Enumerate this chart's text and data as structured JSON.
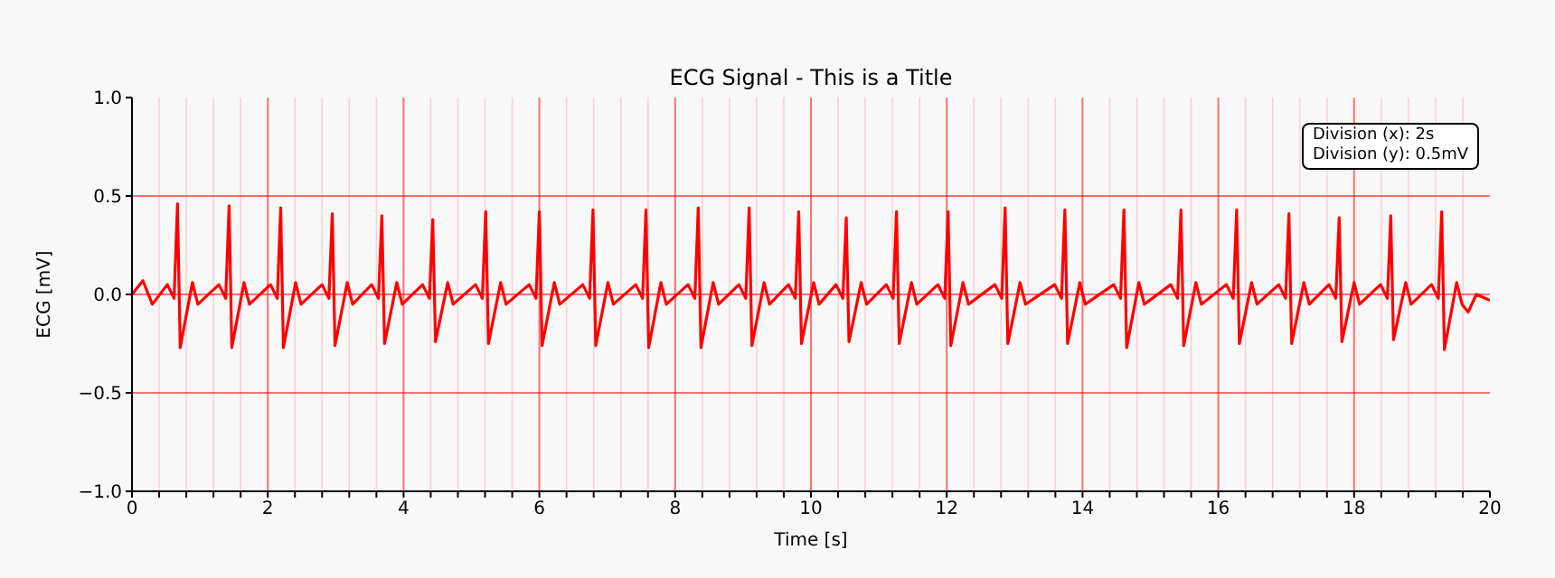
{
  "chart_data": {
    "type": "line",
    "title": "ECG Signal - This is a Title",
    "xlabel": "Time [s]",
    "ylabel": "ECG [mV]",
    "annotations": [
      "Division (x): 2s",
      "Division (y): 0.5mV"
    ],
    "xlim": [
      0,
      20
    ],
    "ylim": [
      -1,
      1
    ],
    "xticks": [
      0,
      {
        "value": 0.4,
        "label": null
      },
      {
        "value": 0.8,
        "label": null
      },
      {
        "value": 1.2,
        "label": null
      },
      {
        "value": 1.6,
        "label": null
      },
      2,
      {
        "value": 2.4,
        "label": null
      },
      {
        "value": 2.8,
        "label": null
      },
      {
        "value": 3.2,
        "label": null
      },
      {
        "value": 3.6,
        "label": null
      },
      4,
      {
        "value": 4.4,
        "label": null
      },
      {
        "value": 4.8,
        "label": null
      },
      {
        "value": 5.2,
        "label": null
      },
      {
        "value": 5.6,
        "label": null
      },
      6,
      {
        "value": 6.4,
        "label": null
      },
      {
        "value": 6.8,
        "label": null
      },
      {
        "value": 7.2,
        "label": null
      },
      {
        "value": 7.6,
        "label": null
      },
      8,
      {
        "value": 8.4,
        "label": null
      },
      {
        "value": 8.8,
        "label": null
      },
      {
        "value": 9.2,
        "label": null
      },
      {
        "value": 9.6,
        "label": null
      },
      10,
      {
        "value": 10.4,
        "label": null
      },
      {
        "value": 10.8,
        "label": null
      },
      {
        "value": 11.2,
        "label": null
      },
      {
        "value": 11.6,
        "label": null
      },
      12,
      {
        "value": 12.4,
        "label": null
      },
      {
        "value": 12.8,
        "label": null
      },
      {
        "value": 13.2,
        "label": null
      },
      {
        "value": 13.6,
        "label": null
      },
      14,
      {
        "value": 14.4,
        "label": null
      },
      {
        "value": 14.8,
        "label": null
      },
      {
        "value": 15.2,
        "label": null
      },
      {
        "value": 15.6,
        "label": null
      },
      16,
      {
        "value": 16.4,
        "label": null
      },
      {
        "value": 16.8,
        "label": null
      },
      {
        "value": 17.2,
        "label": null
      },
      {
        "value": 17.6,
        "label": null
      },
      18,
      {
        "value": 18.4,
        "label": null
      },
      {
        "value": 18.8,
        "label": null
      },
      {
        "value": 19.2,
        "label": null
      },
      {
        "value": 19.6,
        "label": null
      },
      20
    ],
    "yticks": [
      {
        "value": -1,
        "label": "−1.0"
      },
      {
        "value": -0.5,
        "label": "−0.5"
      },
      {
        "value": 0,
        "label": "0.0"
      },
      {
        "value": 0.5,
        "label": "0.5"
      },
      {
        "value": 1,
        "label": "1.0"
      }
    ],
    "grid": true,
    "marker": "none",
    "line_style": "solid",
    "series": [
      {
        "color": "#ff0000",
        "x": [
          0,
          0.16,
          0.3,
          0.52,
          0.62,
          0.67,
          0.71,
          0.89,
          0.97,
          1.28,
          1.38,
          1.43,
          1.47,
          1.65,
          1.73,
          2.04,
          2.14,
          2.19,
          2.23,
          2.41,
          2.49,
          2.8,
          2.9,
          2.95,
          2.99,
          3.17,
          3.25,
          3.53,
          3.63,
          3.68,
          3.72,
          3.9,
          3.98,
          4.28,
          4.38,
          4.43,
          4.47,
          4.65,
          4.73,
          5.06,
          5.16,
          5.21,
          5.25,
          5.43,
          5.51,
          5.85,
          5.95,
          6.0,
          6.04,
          6.22,
          6.3,
          6.64,
          6.74,
          6.79,
          6.83,
          7.01,
          7.09,
          7.42,
          7.52,
          7.57,
          7.61,
          7.79,
          7.87,
          8.19,
          8.29,
          8.34,
          8.38,
          8.56,
          8.64,
          8.94,
          9.04,
          9.09,
          9.13,
          9.31,
          9.39,
          9.67,
          9.77,
          9.82,
          9.86,
          10.04,
          10.12,
          10.37,
          10.47,
          10.52,
          10.56,
          10.74,
          10.82,
          11.11,
          11.21,
          11.26,
          11.3,
          11.48,
          11.56,
          11.87,
          11.97,
          12.02,
          12.06,
          12.24,
          12.32,
          12.71,
          12.81,
          12.86,
          12.9,
          13.08,
          13.16,
          13.59,
          13.69,
          13.74,
          13.78,
          13.96,
          14.04,
          14.46,
          14.56,
          14.61,
          14.65,
          14.83,
          14.91,
          15.3,
          15.4,
          15.45,
          15.49,
          15.67,
          15.75,
          16.12,
          16.22,
          16.27,
          16.31,
          16.49,
          16.57,
          16.89,
          16.99,
          17.04,
          17.08,
          17.26,
          17.34,
          17.63,
          17.73,
          17.78,
          17.82,
          18.0,
          18.08,
          18.39,
          18.49,
          18.54,
          18.58,
          18.76,
          18.84,
          19.14,
          19.24,
          19.29,
          19.33,
          19.51,
          19.59,
          19.68,
          19.8,
          20
        ],
        "values": [
          0,
          0.07,
          -0.05,
          0.05,
          -0.02,
          0.46,
          -0.27,
          0.06,
          -0.05,
          0.05,
          -0.02,
          0.45,
          -0.27,
          0.06,
          -0.05,
          0.05,
          -0.02,
          0.44,
          -0.27,
          0.06,
          -0.05,
          0.05,
          -0.02,
          0.41,
          -0.26,
          0.06,
          -0.05,
          0.05,
          -0.02,
          0.4,
          -0.25,
          0.06,
          -0.05,
          0.05,
          -0.02,
          0.38,
          -0.24,
          0.06,
          -0.05,
          0.05,
          -0.02,
          0.42,
          -0.25,
          0.06,
          -0.05,
          0.05,
          -0.02,
          0.42,
          -0.26,
          0.06,
          -0.05,
          0.05,
          -0.02,
          0.43,
          -0.26,
          0.06,
          -0.05,
          0.05,
          -0.02,
          0.43,
          -0.27,
          0.06,
          -0.05,
          0.05,
          -0.02,
          0.44,
          -0.27,
          0.06,
          -0.05,
          0.05,
          -0.02,
          0.44,
          -0.26,
          0.06,
          -0.05,
          0.05,
          -0.02,
          0.42,
          -0.25,
          0.06,
          -0.05,
          0.05,
          -0.02,
          0.39,
          -0.24,
          0.06,
          -0.05,
          0.05,
          -0.02,
          0.42,
          -0.25,
          0.06,
          -0.05,
          0.05,
          -0.02,
          0.42,
          -0.26,
          0.06,
          -0.05,
          0.05,
          -0.02,
          0.44,
          -0.25,
          0.06,
          -0.05,
          0.05,
          -0.02,
          0.43,
          -0.25,
          0.06,
          -0.05,
          0.05,
          -0.02,
          0.43,
          -0.27,
          0.06,
          -0.05,
          0.05,
          -0.02,
          0.43,
          -0.26,
          0.06,
          -0.05,
          0.05,
          -0.02,
          0.43,
          -0.25,
          0.06,
          -0.05,
          0.05,
          -0.02,
          0.41,
          -0.25,
          0.06,
          -0.05,
          0.05,
          -0.02,
          0.39,
          -0.24,
          0.06,
          -0.05,
          0.05,
          -0.02,
          0.4,
          -0.23,
          0.06,
          -0.05,
          0.05,
          -0.02,
          0.42,
          -0.28,
          0.06,
          -0.05,
          -0.09,
          0.0,
          -0.03
        ]
      }
    ]
  }
}
